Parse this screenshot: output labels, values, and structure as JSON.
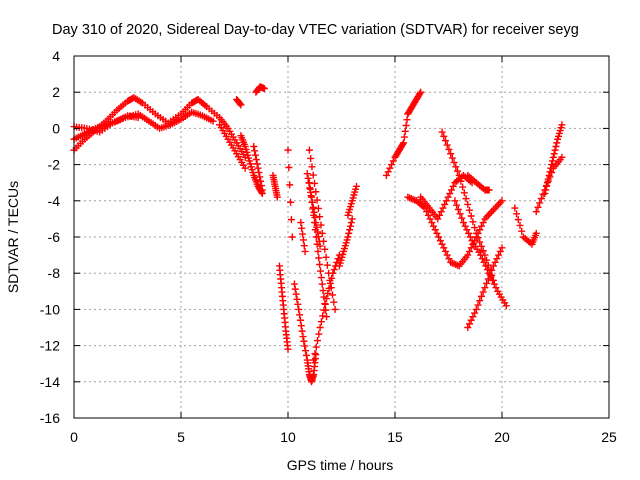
{
  "chart_data": {
    "type": "scatter",
    "title": "Day 310 of 2020, Sidereal Day-to-day VTEC variation (SDTVAR) for receiver seyg",
    "xlabel": "GPS time / hours",
    "ylabel": "SDTVAR / TECUs",
    "xlim": [
      0,
      25
    ],
    "ylim": [
      -16,
      4
    ],
    "xticks": [
      "0",
      "5",
      "10",
      "15",
      "20",
      "25"
    ],
    "yticks": [
      "4",
      "2",
      "0",
      "-2",
      "-4",
      "-6",
      "-8",
      "-10",
      "-12",
      "-14",
      "-16"
    ],
    "grid": true,
    "marker": "+",
    "color": "#ff0000",
    "series": [
      {
        "x": [
          0,
          0.5,
          1,
          1.5,
          2,
          2.5,
          2.8,
          3.2,
          3.8,
          4.4,
          5.0,
          5.5,
          5.8,
          6.2,
          6.8,
          7.2,
          7.6,
          8.0
        ],
        "y": [
          -1.2,
          -0.6,
          -0.1,
          0.4,
          1.0,
          1.5,
          1.7,
          1.4,
          0.8,
          0.3,
          0.8,
          1.4,
          1.6,
          1.2,
          0.6,
          0.0,
          -0.8,
          -1.6
        ]
      },
      {
        "x": [
          0,
          0.6,
          1.2,
          1.8,
          2.4,
          3.0,
          3.5,
          4.0,
          4.5,
          5.0,
          5.5,
          6.0,
          6.5
        ],
        "y": [
          0.1,
          0.0,
          -0.2,
          0.3,
          0.6,
          0.8,
          0.4,
          0.0,
          0.2,
          0.5,
          0.9,
          0.7,
          0.4
        ]
      },
      {
        "x": [
          0,
          0.5,
          1,
          1.5,
          2,
          2.5,
          3.0
        ],
        "y": [
          -0.6,
          -0.3,
          0.0,
          0.2,
          0.4,
          0.7,
          0.6
        ]
      },
      {
        "x": [
          6.8,
          7.2,
          7.6,
          8.0
        ],
        "y": [
          0.2,
          -0.6,
          -1.4,
          -2.2
        ]
      },
      {
        "x": [
          7.8,
          8.0,
          8.2,
          8.4,
          8.6,
          8.8
        ],
        "y": [
          -0.4,
          -1.0,
          -1.8,
          -2.6,
          -3.2,
          -3.6
        ]
      },
      {
        "x": [
          8.4,
          8.6,
          8.8
        ],
        "y": [
          -1.0,
          -2.2,
          -3.4
        ]
      },
      {
        "x": [
          8.5,
          8.7,
          8.9
        ],
        "y": [
          2.0,
          2.3,
          2.2
        ]
      },
      {
        "x": [
          7.6,
          7.8
        ],
        "y": [
          1.6,
          1.3
        ]
      },
      {
        "x": [
          9.6,
          9.7,
          9.8,
          9.9,
          10.0
        ],
        "y": [
          -7.6,
          -8.8,
          -10.0,
          -11.2,
          -12.2
        ]
      },
      {
        "x": [
          9.3,
          9.4,
          9.5
        ],
        "y": [
          -2.6,
          -3.2,
          -3.8
        ]
      },
      {
        "x": [
          10.3,
          10.5,
          10.7,
          10.9,
          11.0,
          11.1,
          11.2,
          11.3
        ],
        "y": [
          -8.6,
          -10.0,
          -11.5,
          -12.8,
          -13.6,
          -14.0,
          -13.6,
          -12.5
        ]
      },
      {
        "x": [
          11.0,
          11.3,
          11.6,
          11.9,
          12.2
        ],
        "y": [
          -1.2,
          -3.5,
          -5.8,
          -8.0,
          -10.0
        ]
      },
      {
        "x": [
          11.0,
          11.2,
          11.4,
          11.6,
          11.8
        ],
        "y": [
          -3.0,
          -4.8,
          -6.8,
          -8.6,
          -10.4
        ]
      },
      {
        "x": [
          11.2,
          11.5,
          11.8,
          12.1,
          12.4
        ],
        "y": [
          -12.8,
          -11.0,
          -9.4,
          -8.0,
          -7.0
        ]
      },
      {
        "x": [
          10.9,
          11.1,
          11.3,
          11.5
        ],
        "y": [
          -2.5,
          -3.8,
          -5.2,
          -6.5
        ]
      },
      {
        "x": [
          12.4,
          12.6,
          12.8,
          13.0
        ],
        "y": [
          -7.6,
          -6.8,
          -6.0,
          -5.0
        ]
      },
      {
        "x": [
          12.8,
          13.0,
          13.2
        ],
        "y": [
          -4.8,
          -4.0,
          -3.2
        ]
      },
      {
        "x": [
          10.0,
          10.2
        ],
        "y": [
          -1.2,
          -6.0
        ]
      },
      {
        "x": [
          10.6,
          10.8
        ],
        "y": [
          -5.2,
          -6.8
        ]
      },
      {
        "x": [
          14.6,
          15.0,
          15.2,
          15.4,
          15.6
        ],
        "y": [
          -2.6,
          -1.6,
          -1.2,
          -0.8,
          0.8
        ]
      },
      {
        "x": [
          15.6,
          15.8,
          16.0,
          16.2
        ],
        "y": [
          0.8,
          1.2,
          1.6,
          2.0
        ]
      },
      {
        "x": [
          15.6,
          16.0,
          16.4,
          16.8,
          17.2,
          17.6,
          18.0,
          18.4,
          18.8,
          19.2,
          19.6,
          20.0
        ],
        "y": [
          -3.8,
          -4.0,
          -4.4,
          -5.4,
          -6.4,
          -7.4,
          -7.6,
          -7.0,
          -6.0,
          -5.0,
          -4.5,
          -4.0
        ]
      },
      {
        "x": [
          16.2,
          16.6,
          17.0,
          17.4,
          17.8,
          18.2,
          18.6
        ],
        "y": [
          -3.8,
          -4.4,
          -5.0,
          -4.0,
          -3.0,
          -2.6,
          -3.0
        ]
      },
      {
        "x": [
          17.2,
          17.6,
          18.0,
          18.4,
          18.8,
          19.2,
          19.6
        ],
        "y": [
          -0.2,
          -1.4,
          -2.6,
          -4.2,
          -5.8,
          -7.0,
          -8.4
        ]
      },
      {
        "x": [
          17.8,
          18.2,
          18.6,
          19.0,
          19.4,
          19.8,
          20.2
        ],
        "y": [
          -4.0,
          -5.2,
          -6.2,
          -7.0,
          -8.0,
          -9.0,
          -9.8
        ]
      },
      {
        "x": [
          18.4,
          18.8,
          19.2,
          19.6,
          20.0
        ],
        "y": [
          -11.0,
          -10.0,
          -8.8,
          -7.6,
          -6.6
        ]
      },
      {
        "x": [
          18.4,
          18.8,
          19.2,
          19.4
        ],
        "y": [
          -2.6,
          -3.0,
          -3.4,
          -3.4
        ]
      },
      {
        "x": [
          20.6,
          21.0,
          21.4,
          21.6
        ],
        "y": [
          -4.4,
          -6.0,
          -6.4,
          -5.8
        ]
      },
      {
        "x": [
          21.6,
          22.0,
          22.4,
          22.8
        ],
        "y": [
          -4.6,
          -3.4,
          -2.2,
          -1.6
        ]
      },
      {
        "x": [
          22.0,
          22.2,
          22.4,
          22.6,
          22.8
        ],
        "y": [
          -3.6,
          -2.6,
          -1.6,
          -0.6,
          0.2
        ]
      }
    ]
  }
}
